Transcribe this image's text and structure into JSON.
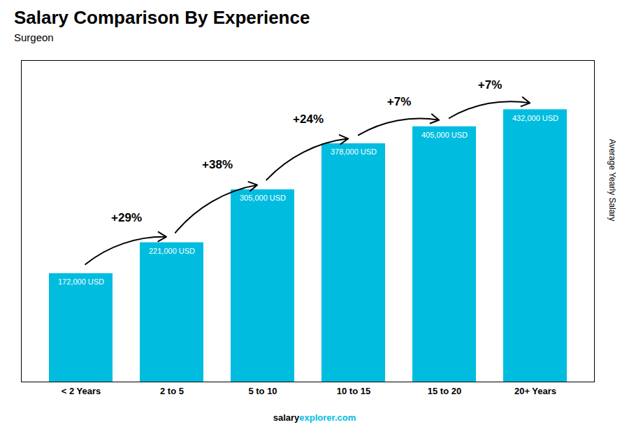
{
  "chart_data": {
    "type": "bar",
    "title": "Salary Comparison By Experience",
    "subtitle": "Surgeon",
    "ylabel": "Average Yearly Salary",
    "categories": [
      "< 2 Years",
      "2 to 5",
      "5 to 10",
      "10 to 15",
      "15 to 20",
      "20+ Years"
    ],
    "values": [
      172000,
      221000,
      305000,
      378000,
      405000,
      432000
    ],
    "value_labels": [
      "172,000 USD",
      "221,000 USD",
      "305,000 USD",
      "378,000 USD",
      "405,000 USD",
      "432,000 USD"
    ],
    "data_labels": true,
    "annotations": [
      "+29%",
      "+38%",
      "+24%",
      "+7%",
      "+7%"
    ],
    "caption": [
      "salary",
      "explorer.com"
    ],
    "color": "#00bde0",
    "ylim": [
      0,
      510000
    ],
    "yticks": [],
    "tick_labels": "x",
    "grid": false
  }
}
